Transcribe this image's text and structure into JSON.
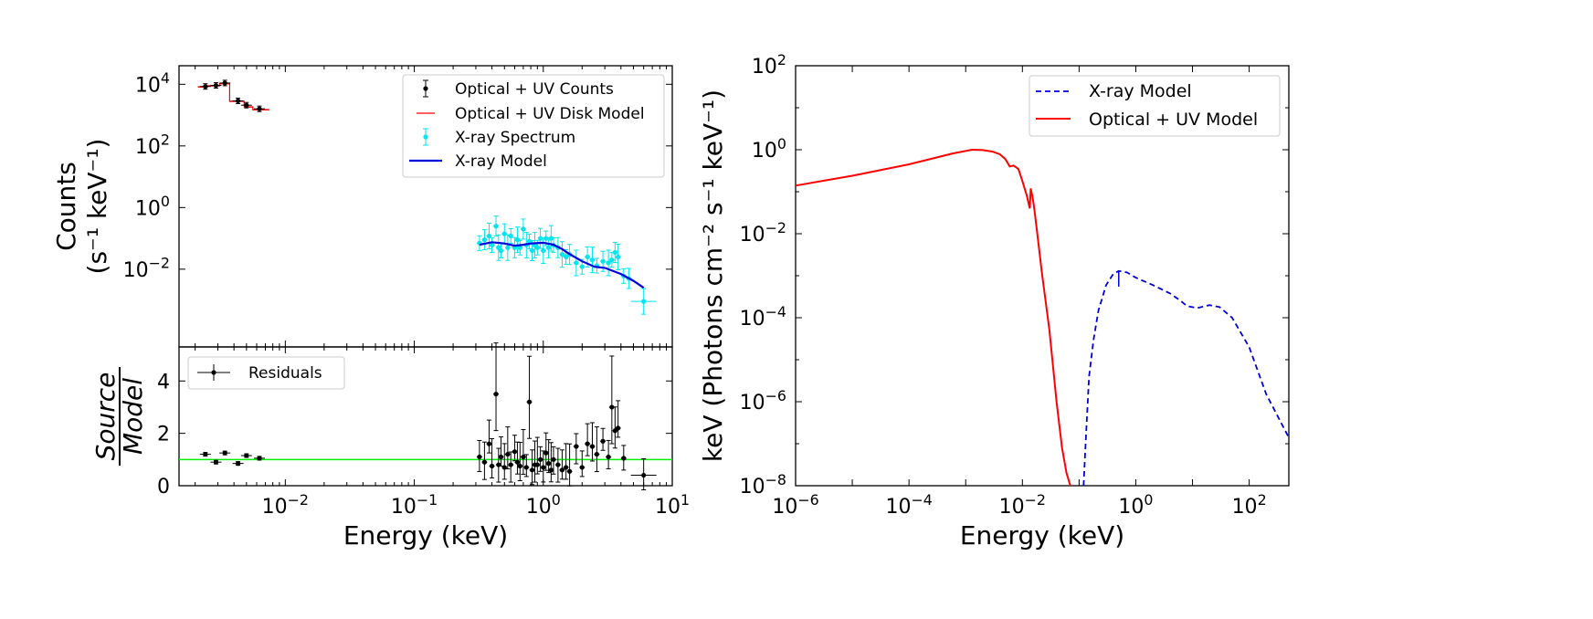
{
  "chart_data": [
    {
      "type": "scatter",
      "panel": "main",
      "xlabel": "Energy (keV)",
      "ylabel_line1": "Counts",
      "ylabel_line2": "(s⁻¹ keV⁻¹)",
      "x_log": true,
      "y_log": true,
      "xlim": [
        0.0015,
        10
      ],
      "ylim": [
        3e-05,
        40000
      ],
      "y_ticks": [
        {
          "value": 10000,
          "mant": "10",
          "exp": "4"
        },
        {
          "value": 100,
          "mant": "10",
          "exp": "2"
        },
        {
          "value": 1,
          "mant": "10",
          "exp": "0"
        },
        {
          "value": 0.01,
          "mant": "10",
          "exp": "−2"
        }
      ],
      "legend": [
        "Optical + UV Counts",
        "Optical + UV Disk Model",
        "X-ray Spectrum",
        "X-ray Model"
      ],
      "legend_position": "top-right",
      "colors": {
        "optical_counts": "#000000",
        "disk_model": "#ff0000",
        "xray_spectrum": "#00e5ee",
        "xray_model": "#0000dd"
      },
      "series": [
        {
          "name": "Optical + UV Counts",
          "points": [
            [
              0.0024,
              8500
            ],
            [
              0.0029,
              9200
            ],
            [
              0.0034,
              11000
            ],
            [
              0.0043,
              2900
            ],
            [
              0.005,
              2100
            ],
            [
              0.0063,
              1600
            ]
          ]
        },
        {
          "name": "Optical + UV Disk Model",
          "steps": [
            [
              0.0021,
              0.0025,
              8200
            ],
            [
              0.0025,
              0.0031,
              8900
            ],
            [
              0.0031,
              0.0037,
              10500
            ],
            [
              0.0037,
              0.0048,
              2800
            ],
            [
              0.0048,
              0.0056,
              1850
            ],
            [
              0.0056,
              0.0075,
              1500
            ]
          ]
        },
        {
          "name": "X-ray Spectrum",
          "points": [
            [
              0.32,
              0.07
            ],
            [
              0.35,
              0.09
            ],
            [
              0.38,
              0.12
            ],
            [
              0.4,
              0.06
            ],
            [
              0.43,
              0.25
            ],
            [
              0.45,
              0.05
            ],
            [
              0.47,
              0.04
            ],
            [
              0.5,
              0.14
            ],
            [
              0.53,
              0.05
            ],
            [
              0.56,
              0.12
            ],
            [
              0.6,
              0.05
            ],
            [
              0.63,
              0.09
            ],
            [
              0.66,
              0.05
            ],
            [
              0.7,
              0.2
            ],
            [
              0.74,
              0.06
            ],
            [
              0.78,
              0.08
            ],
            [
              0.82,
              0.04
            ],
            [
              0.86,
              0.06
            ],
            [
              0.9,
              0.05
            ],
            [
              0.95,
              0.1
            ],
            [
              1.0,
              0.04
            ],
            [
              1.05,
              0.1
            ],
            [
              1.1,
              0.05
            ],
            [
              1.15,
              0.1
            ],
            [
              1.2,
              0.06
            ],
            [
              1.3,
              0.05
            ],
            [
              1.4,
              0.03
            ],
            [
              1.5,
              0.025
            ],
            [
              1.6,
              0.03
            ],
            [
              1.8,
              0.016
            ],
            [
              2.0,
              0.012
            ],
            [
              2.2,
              0.025
            ],
            [
              2.4,
              0.02
            ],
            [
              2.6,
              0.013
            ],
            [
              2.9,
              0.018
            ],
            [
              3.2,
              0.016
            ],
            [
              3.4,
              0.02
            ],
            [
              3.6,
              0.035
            ],
            [
              3.8,
              0.025
            ],
            [
              4.2,
              0.006
            ],
            [
              4.6,
              0.005
            ],
            [
              6.0,
              0.0009
            ]
          ]
        },
        {
          "name": "X-ray Model",
          "x": [
            0.32,
            0.4,
            0.5,
            0.6,
            0.7,
            0.8,
            1.0,
            1.2,
            1.4,
            1.6,
            2.0,
            2.5,
            3.0,
            4.0,
            5.0,
            6.0
          ],
          "y": [
            0.062,
            0.075,
            0.068,
            0.058,
            0.062,
            0.068,
            0.072,
            0.062,
            0.045,
            0.031,
            0.018,
            0.012,
            0.011,
            0.007,
            0.0042,
            0.0025
          ]
        }
      ]
    },
    {
      "type": "scatter",
      "panel": "residuals",
      "ylabel_line1": "Source",
      "ylabel_line2": "Model",
      "x_log": true,
      "xlim": [
        0.0015,
        10
      ],
      "ylim": [
        0,
        5.3
      ],
      "x_ticks": [
        {
          "value": 0.01,
          "mant": "10",
          "exp": "−2"
        },
        {
          "value": 0.1,
          "mant": "10",
          "exp": "−1"
        },
        {
          "value": 1,
          "mant": "10",
          "exp": "0"
        },
        {
          "value": 10,
          "mant": "10",
          "exp": "1"
        }
      ],
      "y_ticks": [
        "0",
        "2",
        "4"
      ],
      "legend": [
        "Residuals"
      ],
      "legend_position": "top-left",
      "reference_line": 1.0,
      "colors": {
        "points": "#000000",
        "reference": "#00ee00"
      },
      "series": [
        {
          "name": "Residuals",
          "points": [
            [
              0.0024,
              1.2
            ],
            [
              0.0029,
              0.9
            ],
            [
              0.0034,
              1.25
            ],
            [
              0.0043,
              0.85
            ],
            [
              0.005,
              1.15
            ],
            [
              0.0063,
              1.05
            ],
            [
              0.32,
              1.1
            ],
            [
              0.35,
              0.9
            ],
            [
              0.38,
              1.6
            ],
            [
              0.4,
              0.75
            ],
            [
              0.43,
              3.5
            ],
            [
              0.45,
              0.8
            ],
            [
              0.47,
              1.1
            ],
            [
              0.5,
              0.7
            ],
            [
              0.53,
              1.2
            ],
            [
              0.56,
              0.8
            ],
            [
              0.6,
              1.3
            ],
            [
              0.63,
              0.9
            ],
            [
              0.66,
              0.75
            ],
            [
              0.7,
              1.1
            ],
            [
              0.74,
              0.7
            ],
            [
              0.78,
              3.2
            ],
            [
              0.82,
              0.6
            ],
            [
              0.86,
              0.8
            ],
            [
              0.9,
              0.8
            ],
            [
              0.95,
              1.0
            ],
            [
              1.0,
              0.7
            ],
            [
              1.05,
              1.25
            ],
            [
              1.1,
              0.85
            ],
            [
              1.15,
              0.6
            ],
            [
              1.2,
              1.0
            ],
            [
              1.3,
              0.8
            ],
            [
              1.4,
              0.6
            ],
            [
              1.5,
              0.7
            ],
            [
              1.6,
              0.55
            ],
            [
              1.8,
              1.5
            ],
            [
              2.0,
              0.7
            ],
            [
              2.2,
              1.6
            ],
            [
              2.4,
              1.5
            ],
            [
              2.6,
              1.2
            ],
            [
              2.9,
              1.7
            ],
            [
              3.2,
              1.1
            ],
            [
              3.4,
              3.0
            ],
            [
              3.6,
              2.1
            ],
            [
              3.8,
              2.2
            ],
            [
              4.2,
              1.05
            ],
            [
              6.0,
              0.4
            ]
          ]
        }
      ]
    },
    {
      "type": "line",
      "panel": "right",
      "xlabel": "Energy (keV)",
      "ylabel": "keV (Photons cm⁻² s⁻¹ keV⁻¹)",
      "x_log": true,
      "y_log": true,
      "xlim": [
        1e-06,
        500
      ],
      "ylim": [
        1e-08,
        100
      ],
      "x_ticks": [
        {
          "value": 1e-06,
          "mant": "10",
          "exp": "−6"
        },
        {
          "value": 0.0001,
          "mant": "10",
          "exp": "−4"
        },
        {
          "value": 0.01,
          "mant": "10",
          "exp": "−2"
        },
        {
          "value": 1,
          "mant": "10",
          "exp": "0"
        },
        {
          "value": 100,
          "mant": "10",
          "exp": "2"
        }
      ],
      "y_ticks": [
        {
          "value": 100,
          "mant": "10",
          "exp": "2"
        },
        {
          "value": 1,
          "mant": "10",
          "exp": "0"
        },
        {
          "value": 0.01,
          "mant": "10",
          "exp": "−2"
        },
        {
          "value": 0.0001,
          "mant": "10",
          "exp": "−4"
        },
        {
          "value": 1e-06,
          "mant": "10",
          "exp": "−6"
        },
        {
          "value": 1e-08,
          "mant": "10",
          "exp": "−8"
        }
      ],
      "legend": [
        "X-ray Model",
        "Optical + UV Model"
      ],
      "legend_position": "top-right",
      "colors": {
        "xray_model": "#0000dd",
        "optical_model": "#ff0000"
      },
      "series": [
        {
          "name": "Optical + UV Model",
          "x": [
            1e-06,
            1e-05,
            0.0001,
            0.0006,
            0.0013,
            0.002,
            0.003,
            0.004,
            0.005,
            0.006,
            0.007,
            0.0085,
            0.01,
            0.012,
            0.0135,
            0.014,
            0.015,
            0.016,
            0.018,
            0.022,
            0.03,
            0.04,
            0.05,
            0.06,
            0.07
          ],
          "y": [
            0.14,
            0.24,
            0.45,
            0.82,
            1.0,
            0.98,
            0.9,
            0.78,
            0.6,
            0.4,
            0.42,
            0.35,
            0.18,
            0.08,
            0.04,
            0.12,
            0.08,
            0.045,
            0.012,
            0.0012,
            5e-05,
            1e-06,
            8e-08,
            2e-08,
            1e-08
          ]
        },
        {
          "name": "X-ray Model",
          "x": [
            0.12,
            0.13,
            0.15,
            0.18,
            0.22,
            0.3,
            0.4,
            0.5,
            0.7,
            1.0,
            2.0,
            4.0,
            6.0,
            8.0,
            12.0,
            20.0,
            30.0,
            50.0,
            100.0,
            200.0,
            500.0
          ],
          "y": [
            1e-08,
            1e-07,
            4e-06,
            3e-05,
            0.00015,
            0.0006,
            0.0011,
            0.0013,
            0.0012,
            0.0009,
            0.0006,
            0.00038,
            0.00026,
            0.00019,
            0.00017,
            0.0002,
            0.00018,
            0.0001,
            2e-05,
            1.5e-06,
            1.4e-07
          ]
        }
      ]
    }
  ]
}
